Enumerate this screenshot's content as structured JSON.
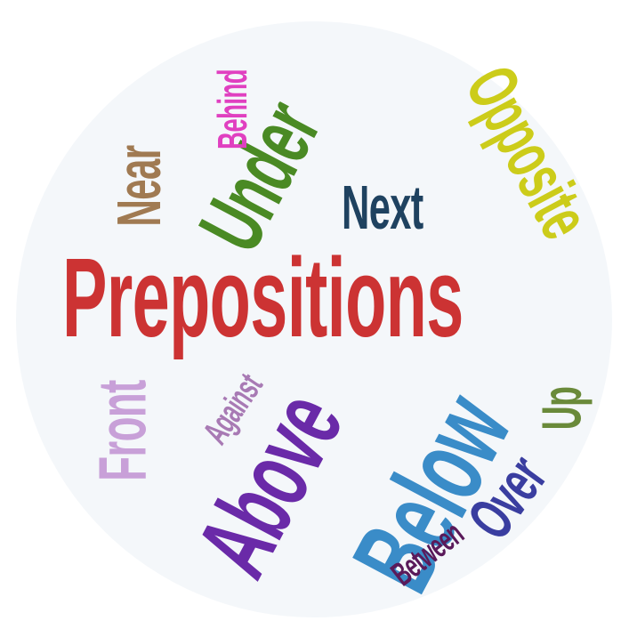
{
  "words": {
    "title": {
      "text": "Prepositions",
      "color": "#cc3333"
    },
    "under": {
      "text": "Under",
      "color": "#4a8a24"
    },
    "near": {
      "text": "Near",
      "color": "#a07a52"
    },
    "behind": {
      "text": "Behind",
      "color": "#e040c0"
    },
    "opposite": {
      "text": "Opposite",
      "color": "#cccc1a"
    },
    "next": {
      "text": "Next",
      "color": "#1f4260"
    },
    "front": {
      "text": "Front",
      "color": "#c8a0d8"
    },
    "against": {
      "text": "Against",
      "color": "#a87ab4"
    },
    "above": {
      "text": "Above",
      "color": "#6a2aa8"
    },
    "below": {
      "text": "Below",
      "color": "#3a8cc8"
    },
    "between": {
      "text": "Between",
      "color": "#5a1a5a"
    },
    "over": {
      "text": "Over",
      "color": "#3a3ea0"
    },
    "up": {
      "text": "Up",
      "color": "#6a8a3a"
    }
  }
}
